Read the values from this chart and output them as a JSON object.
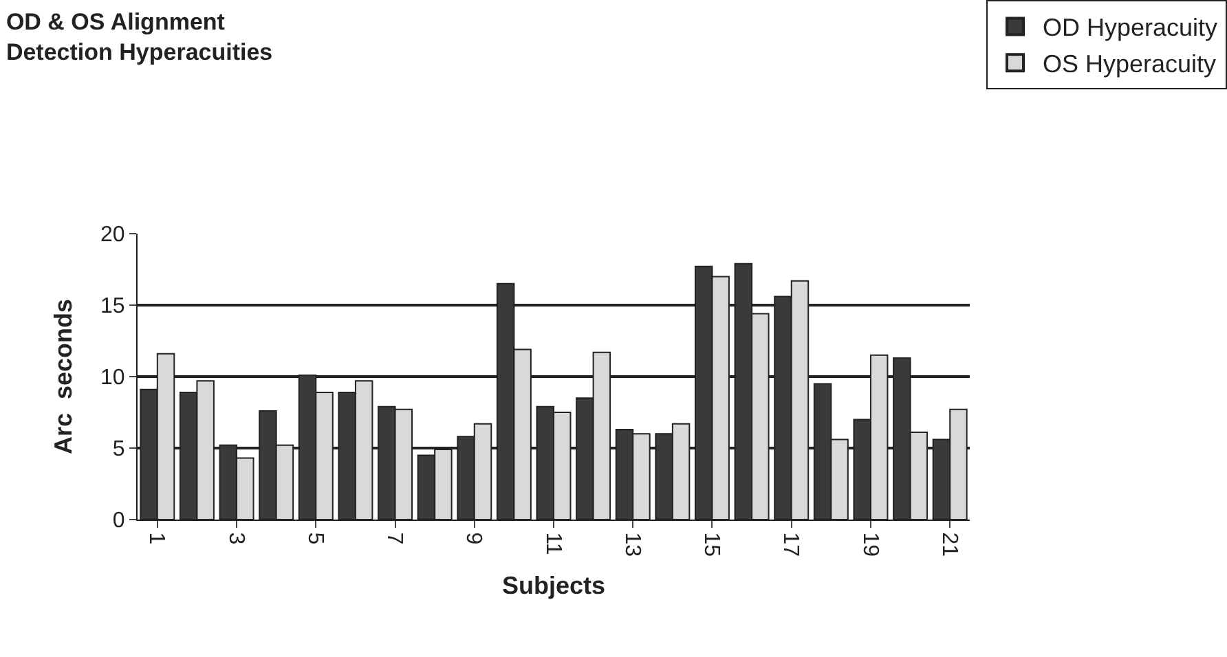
{
  "chart_data": {
    "type": "bar",
    "title": "OD & OS Alignment\nDetection Hyperacuities",
    "xlabel": "Subjects",
    "ylabel": "Arc  seconds",
    "categories": [
      "1",
      null,
      "3",
      null,
      "5",
      null,
      "7",
      null,
      "9",
      null,
      "11",
      null,
      "13",
      null,
      "15",
      null,
      "17",
      null,
      "19",
      null,
      "21"
    ],
    "series": [
      {
        "name": "OD Hyperacuity",
        "color": "#3a3a3a",
        "values": [
          9.1,
          8.9,
          5.2,
          7.6,
          10.1,
          8.9,
          7.9,
          4.5,
          5.8,
          16.5,
          7.9,
          8.5,
          6.3,
          6.0,
          17.7,
          17.9,
          15.6,
          9.5,
          7.0,
          11.3,
          5.6
        ]
      },
      {
        "name": "OS Hyperacuity",
        "color": "#d9d9d9",
        "values": [
          11.6,
          9.7,
          4.3,
          5.2,
          8.9,
          9.7,
          7.7,
          4.9,
          6.7,
          11.9,
          7.5,
          11.7,
          6.0,
          6.7,
          17.0,
          14.4,
          16.7,
          5.6,
          11.5,
          6.1,
          7.7
        ]
      }
    ],
    "ylim": [
      0,
      20
    ],
    "yticks": [
      0,
      5,
      10,
      15,
      20
    ],
    "grid": "y",
    "legend": "top right"
  }
}
